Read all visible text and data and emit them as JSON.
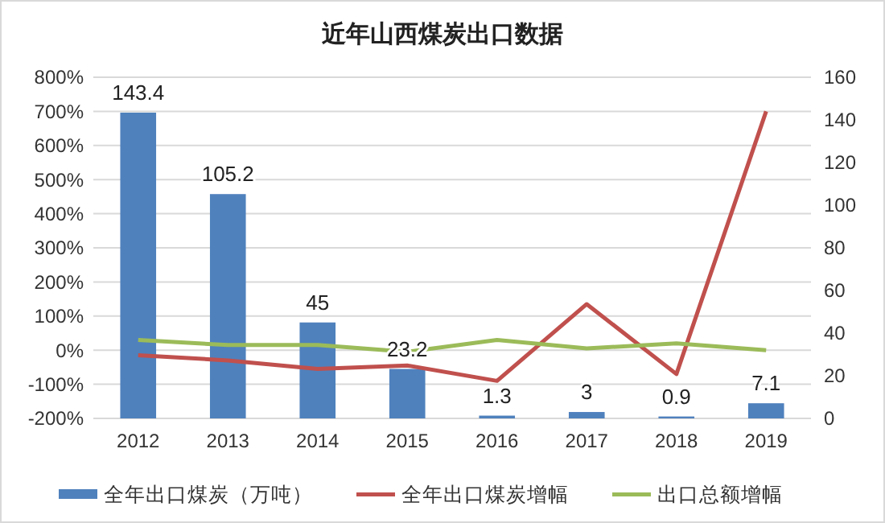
{
  "chart_data": {
    "type": "bar",
    "title": "近年山西煤炭出口数据",
    "categories": [
      "2012",
      "2013",
      "2014",
      "2015",
      "2016",
      "2017",
      "2018",
      "2019"
    ],
    "series": [
      {
        "name": "全年出口煤炭（万吨）",
        "axis": "y2",
        "color": "#4f81bd",
        "values": [
          143.4,
          105.2,
          45,
          23.2,
          1.3,
          3,
          0.9,
          7.1
        ],
        "value_labels": [
          "143.4",
          "105.2",
          "45",
          "23.2",
          "1.3",
          "3",
          "0.9",
          "7.1"
        ]
      },
      {
        "name": "全年出口煤炭增幅",
        "type": "line",
        "axis": "y",
        "color": "#c0504d",
        "values": [
          -15,
          -30,
          -55,
          -45,
          -90,
          135,
          -70,
          700
        ]
      },
      {
        "name": "出口总额增幅",
        "type": "line",
        "axis": "y",
        "color": "#9bbb59",
        "values": [
          30,
          15,
          15,
          -5,
          30,
          5,
          20,
          0
        ]
      }
    ],
    "ylim": [
      -200,
      800
    ],
    "yticks": [
      {
        "value": -200,
        "label": "-200%"
      },
      {
        "value": -100,
        "label": "-100%"
      },
      {
        "value": 0,
        "label": "0%"
      },
      {
        "value": 100,
        "label": "100%"
      },
      {
        "value": 200,
        "label": "200%"
      },
      {
        "value": 300,
        "label": "300%"
      },
      {
        "value": 400,
        "label": "400%"
      },
      {
        "value": 500,
        "label": "500%"
      },
      {
        "value": 600,
        "label": "600%"
      },
      {
        "value": 700,
        "label": "700%"
      },
      {
        "value": 800,
        "label": "800%"
      }
    ],
    "y2lim": [
      0,
      160
    ],
    "y2ticks": [
      0,
      20,
      40,
      60,
      80,
      100,
      120,
      140,
      160
    ],
    "grid": "y",
    "legend": "bottom",
    "marker": "none",
    "line_style": "solid"
  }
}
